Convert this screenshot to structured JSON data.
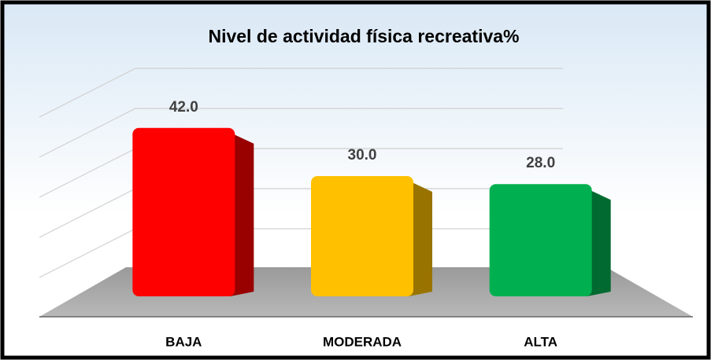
{
  "chart_data": {
    "type": "bar",
    "title": "Nivel de actividad física recreativa%",
    "categories": [
      "BAJA",
      "MODERADA",
      "ALTA"
    ],
    "values": [
      42,
      30,
      28
    ],
    "value_labels": [
      "42.0",
      "30.0",
      "28.0"
    ],
    "colors": [
      "#ff0000",
      "#ffc000",
      "#00b050"
    ],
    "ylim": [
      0,
      50
    ],
    "yticks": [
      0,
      10,
      20,
      30,
      40,
      50
    ],
    "grid": true
  }
}
